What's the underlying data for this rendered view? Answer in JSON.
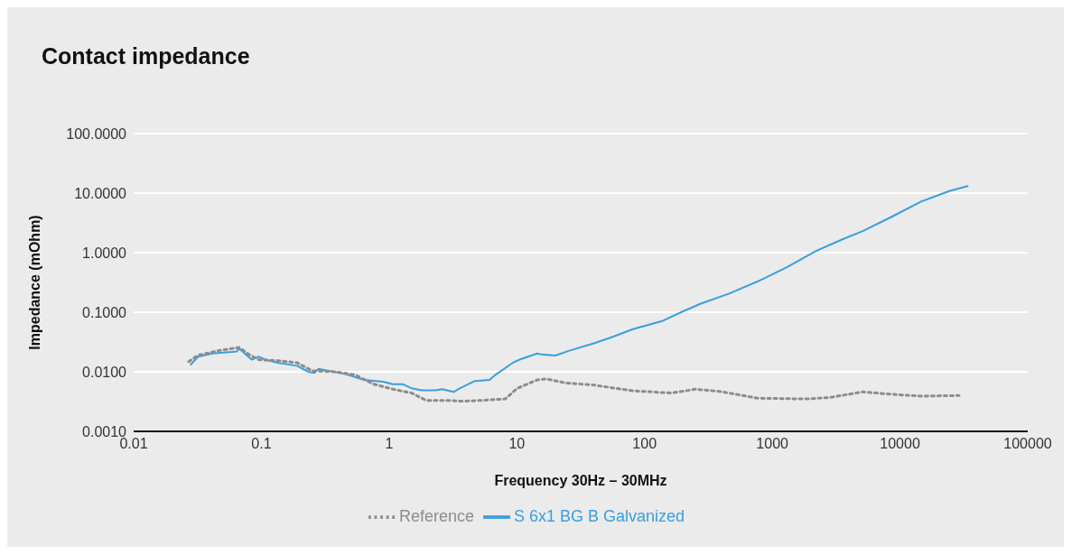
{
  "chart_data": {
    "type": "line",
    "title": "Contact impedance",
    "xlabel": "Frequency 30Hz – 30MHz",
    "ylabel": "Impedance (mOhm)",
    "log": "xy",
    "grid": "y",
    "legend": "bottom",
    "marker": "none",
    "xlim": [
      0.01,
      100000
    ],
    "xticks": [
      0.01,
      0.1,
      1,
      10,
      100,
      1000,
      10000,
      100000
    ],
    "ylim": [
      0.001,
      100
    ],
    "yticks": [
      {
        "value": 0.001,
        "label": "0.0010"
      },
      {
        "value": 0.01,
        "label": "0.0100"
      },
      {
        "value": 0.1,
        "label": "0.1000"
      },
      {
        "value": 1,
        "label": "1.0000"
      },
      {
        "value": 10,
        "label": "10.0000"
      },
      {
        "value": 100,
        "label": "100.0000"
      }
    ],
    "series": [
      {
        "name": "S 6x1 BG B Galvanized",
        "color": "#3a9ee0",
        "line_style": "solid",
        "x": [
          0.028,
          0.032,
          0.041,
          0.064,
          0.067,
          0.084,
          0.095,
          0.107,
          0.134,
          0.19,
          0.234,
          0.26,
          0.28,
          0.45,
          0.64,
          0.9,
          1.07,
          1.27,
          1.5,
          1.8,
          2.3,
          2.6,
          3.2,
          3.6,
          4.7,
          6.1,
          6.8,
          9.3,
          10.5,
          14.4,
          15.7,
          20,
          26,
          40,
          57,
          81,
          137,
          193,
          272,
          458,
          770,
          1300,
          2200,
          3600,
          5100,
          8600,
          14600,
          24600,
          33800
        ],
        "values": [
          0.0132,
          0.018,
          0.0203,
          0.0219,
          0.0245,
          0.016,
          0.018,
          0.016,
          0.0142,
          0.0126,
          0.01,
          0.0096,
          0.0112,
          0.0092,
          0.0073,
          0.0068,
          0.0062,
          0.0062,
          0.0053,
          0.0049,
          0.0049,
          0.0051,
          0.0046,
          0.0053,
          0.007,
          0.0073,
          0.0089,
          0.0142,
          0.016,
          0.0203,
          0.0195,
          0.0187,
          0.0228,
          0.03,
          0.039,
          0.052,
          0.071,
          0.1,
          0.138,
          0.205,
          0.33,
          0.57,
          1.07,
          1.7,
          2.3,
          4,
          7.2,
          10.9,
          13.1
        ]
      },
      {
        "name": "Reference",
        "color": "#8c8c8c",
        "line_style": "dotted",
        "x": [
          0.027,
          0.032,
          0.047,
          0.067,
          0.08,
          0.095,
          0.134,
          0.19,
          0.25,
          0.38,
          0.54,
          0.76,
          1.07,
          1.5,
          1.96,
          3,
          3.8,
          5.1,
          8.1,
          10.1,
          14.4,
          17,
          24,
          40,
          81,
          162,
          250,
          385,
          770,
          1830,
          2800,
          5100,
          8600,
          14600,
          29000
        ],
        "values": [
          0.0148,
          0.019,
          0.0228,
          0.0256,
          0.0195,
          0.016,
          0.0154,
          0.0142,
          0.0104,
          0.01,
          0.0089,
          0.0062,
          0.0051,
          0.0044,
          0.0033,
          0.0033,
          0.0032,
          0.0033,
          0.0035,
          0.0053,
          0.0073,
          0.0076,
          0.0065,
          0.006,
          0.0048,
          0.0044,
          0.0051,
          0.0047,
          0.0036,
          0.0035,
          0.0037,
          0.0046,
          0.0042,
          0.0039,
          0.004
        ]
      }
    ]
  }
}
